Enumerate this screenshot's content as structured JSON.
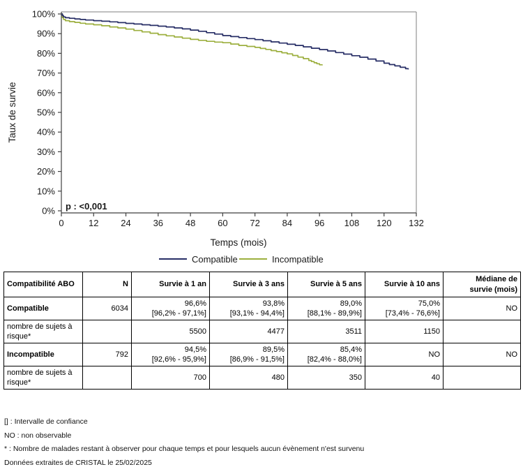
{
  "chart": {
    "ylabel": "Taux de survie",
    "xlabel": "Temps (mois)",
    "pvalue": "p : <0,001"
  },
  "chart_data": {
    "type": "line",
    "subtype": "kaplan-meier-step",
    "title": "",
    "xlabel": "Temps (mois)",
    "ylabel": "Taux de survie",
    "xlim": [
      0,
      132
    ],
    "ylim": [
      0,
      100
    ],
    "x_ticks": [
      0,
      12,
      24,
      36,
      48,
      60,
      72,
      84,
      96,
      108,
      120,
      132
    ],
    "y_ticks": [
      0,
      10,
      20,
      30,
      40,
      50,
      60,
      70,
      80,
      90,
      100
    ],
    "y_tick_suffix": "%",
    "grid": false,
    "legend_position": "bottom-center",
    "annotation": "p : <0,001",
    "series": [
      {
        "name": "Compatible",
        "color": "#272e66",
        "points": [
          [
            0,
            100
          ],
          [
            0.4,
            99.2
          ],
          [
            0.8,
            98.5
          ],
          [
            1.5,
            98.1
          ],
          [
            3,
            97.8
          ],
          [
            5,
            97.5
          ],
          [
            7,
            97.2
          ],
          [
            9,
            96.9
          ],
          [
            12,
            96.6
          ],
          [
            15,
            96.3
          ],
          [
            18,
            96.0
          ],
          [
            21,
            95.6
          ],
          [
            24,
            95.2
          ],
          [
            27,
            94.9
          ],
          [
            30,
            94.5
          ],
          [
            33,
            94.2
          ],
          [
            36,
            93.8
          ],
          [
            39,
            93.4
          ],
          [
            42,
            92.9
          ],
          [
            45,
            92.4
          ],
          [
            48,
            91.8
          ],
          [
            51,
            91.2
          ],
          [
            54,
            90.5
          ],
          [
            57,
            89.8
          ],
          [
            60,
            89.0
          ],
          [
            63,
            88.5
          ],
          [
            66,
            88.0
          ],
          [
            69,
            87.5
          ],
          [
            72,
            87.0
          ],
          [
            75,
            86.4
          ],
          [
            78,
            85.8
          ],
          [
            81,
            85.2
          ],
          [
            84,
            84.6
          ],
          [
            87,
            84.0
          ],
          [
            90,
            83.3
          ],
          [
            93,
            82.6
          ],
          [
            96,
            81.9
          ],
          [
            99,
            81.2
          ],
          [
            102,
            80.4
          ],
          [
            105,
            79.6
          ],
          [
            108,
            78.8
          ],
          [
            111,
            78.0
          ],
          [
            114,
            77.1
          ],
          [
            117,
            76.1
          ],
          [
            120,
            75.0
          ],
          [
            122,
            74.3
          ],
          [
            124,
            73.6
          ],
          [
            126,
            72.9
          ],
          [
            128,
            72.2
          ],
          [
            129,
            71.8
          ]
        ]
      },
      {
        "name": "Incompatible",
        "color": "#9caf3e",
        "points": [
          [
            0,
            100
          ],
          [
            0.4,
            98.2
          ],
          [
            0.8,
            97.2
          ],
          [
            1.5,
            96.6
          ],
          [
            3,
            96.1
          ],
          [
            5,
            95.7
          ],
          [
            7,
            95.3
          ],
          [
            9,
            94.9
          ],
          [
            12,
            94.5
          ],
          [
            15,
            94.0
          ],
          [
            18,
            93.4
          ],
          [
            21,
            92.9
          ],
          [
            24,
            92.3
          ],
          [
            27,
            91.6
          ],
          [
            30,
            90.9
          ],
          [
            33,
            90.2
          ],
          [
            36,
            89.5
          ],
          [
            39,
            88.9
          ],
          [
            42,
            88.3
          ],
          [
            45,
            87.7
          ],
          [
            48,
            87.1
          ],
          [
            51,
            86.6
          ],
          [
            54,
            86.1
          ],
          [
            57,
            85.7
          ],
          [
            60,
            85.4
          ],
          [
            63,
            84.7
          ],
          [
            66,
            84.0
          ],
          [
            69,
            83.5
          ],
          [
            72,
            83.0
          ],
          [
            74,
            82.5
          ],
          [
            76,
            82.0
          ],
          [
            78,
            81.4
          ],
          [
            80,
            80.9
          ],
          [
            82,
            80.3
          ],
          [
            84,
            79.7
          ],
          [
            86,
            78.9
          ],
          [
            88,
            78.1
          ],
          [
            90,
            77.3
          ],
          [
            92,
            76.4
          ],
          [
            93,
            75.8
          ],
          [
            94,
            75.2
          ],
          [
            95,
            74.7
          ],
          [
            96,
            74.2
          ],
          [
            97,
            73.9
          ]
        ]
      }
    ]
  },
  "table": {
    "col_headers": {
      "c0": "Compatibilité ABO",
      "c1": "N",
      "c2": "Survie à 1 an",
      "c3": "Survie à 3 ans",
      "c4": "Survie à 5 ans",
      "c5": "Survie à 10 ans",
      "c6a": "Médiane de",
      "c6b": "survie (mois)"
    },
    "r1": {
      "label": "Compatible",
      "n": "6034",
      "s1": "96,6%",
      "s1ci": "[96,2% - 97,1%]",
      "s3": "93,8%",
      "s3ci": "[93,1% - 94,4%]",
      "s5": "89,0%",
      "s5ci": "[88,1% - 89,9%]",
      "s10": "75,0%",
      "s10ci": "[73,4% - 76,6%]",
      "med": "NO"
    },
    "r2": {
      "label": "nombre de sujets à risque*",
      "s1": "5500",
      "s3": "4477",
      "s5": "3511",
      "s10": "1150"
    },
    "r3": {
      "label": "Incompatible",
      "n": "792",
      "s1": "94,5%",
      "s1ci": "[92,6% - 95,9%]",
      "s3": "89,5%",
      "s3ci": "[86,9% - 91,5%]",
      "s5": "85,4%",
      "s5ci": "[82,4% - 88,0%]",
      "s10": "NO",
      "med": "NO"
    },
    "r4": {
      "label": "nombre de sujets à risque*",
      "s1": "700",
      "s3": "480",
      "s5": "350",
      "s10": "40"
    }
  },
  "footnotes": {
    "f1": "[] : Intervalle de confiance",
    "f2": "NO : non observable",
    "f3": "* : Nombre de malades restant à observer pour chaque temps et pour lesquels aucun évènement n'est survenu",
    "f4": "Données extraites de CRISTAL le 25/02/2025"
  }
}
